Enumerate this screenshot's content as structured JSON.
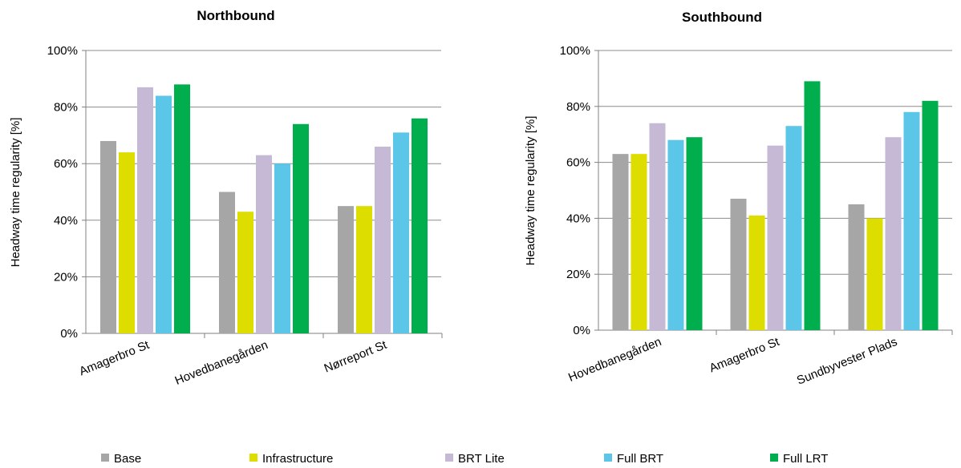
{
  "colors": {
    "Base": "#A6A6A6",
    "Infrastructure": "#DDDD00",
    "BRT Lite": "#C5B9D6",
    "Full BRT": "#5BC6E8",
    "Full LRT": "#00AE4E",
    "gridline": "#8C8C8C",
    "axis": "#808080"
  },
  "chart_data": [
    {
      "type": "bar",
      "title": "Northbound",
      "xlabel": "",
      "ylabel": "Headway time regularity [%]",
      "ylim": [
        0,
        100
      ],
      "yticks": [
        "0%",
        "20%",
        "40%",
        "60%",
        "80%",
        "100%"
      ],
      "grid": true,
      "categories": [
        "Amagerbro St",
        "Hovedbanegården",
        "Nørreport St"
      ],
      "series": [
        {
          "name": "Base",
          "values": [
            68,
            50,
            45
          ]
        },
        {
          "name": "Infrastructure",
          "values": [
            64,
            43,
            45
          ]
        },
        {
          "name": "BRT Lite",
          "values": [
            87,
            63,
            66
          ]
        },
        {
          "name": "Full BRT",
          "values": [
            84,
            60,
            71
          ]
        },
        {
          "name": "Full LRT",
          "values": [
            88,
            74,
            76
          ]
        }
      ]
    },
    {
      "type": "bar",
      "title": "Southbound",
      "xlabel": "",
      "ylabel": "Headway time regularity [%]",
      "ylim": [
        0,
        100
      ],
      "yticks": [
        "0%",
        "20%",
        "40%",
        "60%",
        "80%",
        "100%"
      ],
      "grid": true,
      "categories": [
        "Hovedbanegården",
        "Amagerbro St",
        "Sundbyvester Plads"
      ],
      "series": [
        {
          "name": "Base",
          "values": [
            63,
            47,
            45
          ]
        },
        {
          "name": "Infrastructure",
          "values": [
            63,
            41,
            40
          ]
        },
        {
          "name": "BRT Lite",
          "values": [
            74,
            66,
            69
          ]
        },
        {
          "name": "Full BRT",
          "values": [
            68,
            73,
            78
          ]
        },
        {
          "name": "Full LRT",
          "values": [
            69,
            89,
            82
          ]
        }
      ]
    }
  ],
  "legend": {
    "position": "bottom",
    "items": [
      "Base",
      "Infrastructure",
      "BRT Lite",
      "Full BRT",
      "Full LRT"
    ]
  }
}
